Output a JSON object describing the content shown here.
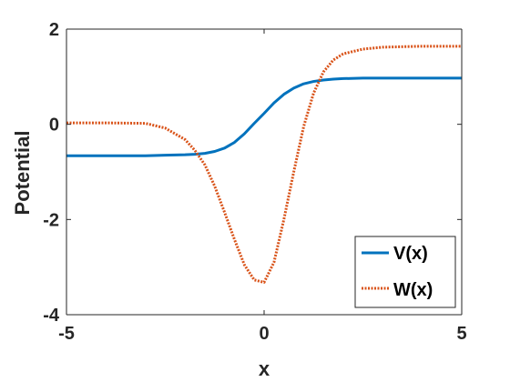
{
  "chart_data": {
    "type": "line",
    "title": "",
    "xlabel": "x",
    "ylabel": "Potential",
    "xlim": [
      -5,
      5
    ],
    "ylim": [
      -4,
      2
    ],
    "x_ticks": [
      -5,
      0,
      5
    ],
    "y_ticks": [
      -4,
      -2,
      0,
      2
    ],
    "x_tick_labels": [
      "-5",
      "0",
      "5"
    ],
    "y_tick_labels": [
      "-4",
      "-2",
      "0",
      "2"
    ],
    "grid": false,
    "legend_position": "bottom-right",
    "x": [
      -5,
      -4,
      -3,
      -2.5,
      -2,
      -1.75,
      -1.5,
      -1.25,
      -1,
      -0.75,
      -0.5,
      -0.25,
      0,
      0.25,
      0.5,
      0.75,
      1,
      1.25,
      1.5,
      1.75,
      2,
      2.5,
      3,
      4,
      5
    ],
    "series": [
      {
        "name": "V(x)",
        "style": "solid",
        "color": "#0072BD",
        "values": [
          -0.66,
          -0.66,
          -0.66,
          -0.65,
          -0.64,
          -0.63,
          -0.61,
          -0.57,
          -0.5,
          -0.38,
          -0.2,
          0.02,
          0.23,
          0.45,
          0.63,
          0.76,
          0.85,
          0.9,
          0.93,
          0.95,
          0.96,
          0.97,
          0.97,
          0.97,
          0.97
        ]
      },
      {
        "name": "W(x)",
        "style": "dotted",
        "color": "#D95319",
        "values": [
          0.03,
          0.03,
          0.02,
          -0.08,
          -0.32,
          -0.55,
          -0.85,
          -1.3,
          -1.85,
          -2.42,
          -2.95,
          -3.27,
          -3.32,
          -2.9,
          -2.0,
          -1.0,
          -0.05,
          0.65,
          1.1,
          1.35,
          1.48,
          1.58,
          1.62,
          1.64,
          1.64
        ]
      }
    ]
  }
}
